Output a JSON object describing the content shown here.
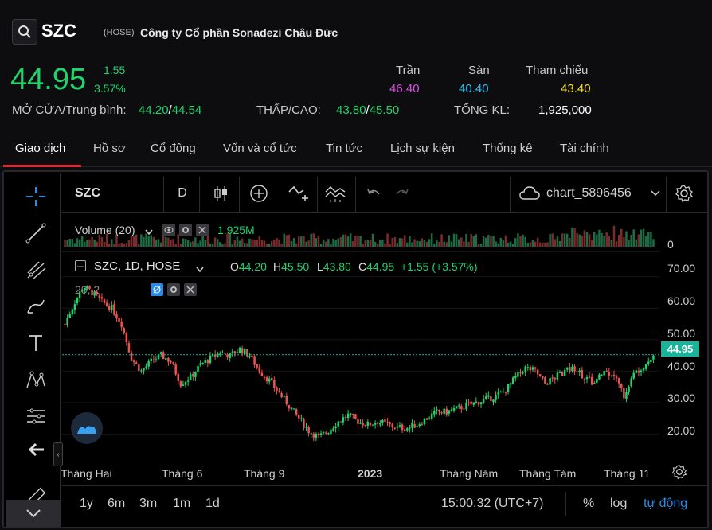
{
  "header": {
    "ticker": "SZC",
    "exchange": "(HOSE)",
    "company": "Công ty Cổ phần Sonadezi Châu Đức",
    "price": "44.95",
    "change": "1.55",
    "change_pct": "3.57%",
    "ceiling_label": "Trần",
    "ceiling": "46.40",
    "floor_label": "Sàn",
    "floor": "40.40",
    "ref_label": "Tham chiếu",
    "ref": "43.40",
    "open_label": "MỞ CỬA/Trung bình:",
    "open": "44.20",
    "open_sep": "/",
    "avg": "44.54",
    "lowhigh_label": "THẤP/CAO:",
    "low": "43.80",
    "lh_sep": "/",
    "high": "45.50",
    "volume_label": "TỔNG KL:",
    "volume": "1,925,000"
  },
  "tabs": [
    "Giao dịch",
    "Hồ sơ",
    "Cổ đông",
    "Vốn và cổ tức",
    "Tin tức",
    "Lịch sự kiện",
    "Thống kê",
    "Tài chính"
  ],
  "toolbar": {
    "symbol": "SZC",
    "interval": "D",
    "layout_name": "chart_5896456"
  },
  "legend": {
    "volume": "Volume (20)",
    "volume_value": "1.925M",
    "series": "SZC, 1D, HOSE",
    "o_label": "O",
    "o": "44.20",
    "h_label": "H",
    "h": "45.50",
    "l_label": "L",
    "l": "43.80",
    "c_label": "C",
    "c": "44.95",
    "change": "+1.55 (+3.57%)",
    "ma": "20, 2"
  },
  "colors": {
    "up": "#21d36b",
    "down": "#ef5350",
    "ceiling": "#d94fe0",
    "floor": "#2bc3f0",
    "ref": "#f5e12d",
    "accent_tab": "#e0252e",
    "price_tag": "#1bb39a",
    "link_blue": "#2a8be6"
  },
  "bottom": {
    "ranges": [
      "1y",
      "6m",
      "3m",
      "1m",
      "1d"
    ],
    "clock": "15:00:32 (UTC+7)",
    "percent": "%",
    "log": "log",
    "auto": "tự động"
  },
  "chart_data": {
    "type": "candlestick",
    "x_ticks": [
      "Tháng Hai",
      "Tháng 6",
      "Tháng 9",
      "2023",
      "Tháng Năm",
      "Tháng Tám",
      "Tháng 11"
    ],
    "y_ticks": [
      "70.00",
      "60.00",
      "50.00",
      "40.00",
      "30.00",
      "20.00"
    ],
    "volume_zero_label": "0",
    "ylim": [
      13,
      75
    ],
    "last_price_label": "44.95",
    "close_path": [
      [
        0,
        55
      ],
      [
        8,
        62
      ],
      [
        15,
        67
      ],
      [
        22,
        65
      ],
      [
        30,
        62
      ],
      [
        38,
        60
      ],
      [
        46,
        55
      ],
      [
        54,
        44
      ],
      [
        62,
        40
      ],
      [
        70,
        43
      ],
      [
        78,
        45
      ],
      [
        86,
        43
      ],
      [
        94,
        36
      ],
      [
        102,
        38
      ],
      [
        110,
        42
      ],
      [
        118,
        44
      ],
      [
        126,
        46
      ],
      [
        134,
        45
      ],
      [
        142,
        47
      ],
      [
        150,
        45
      ],
      [
        158,
        40
      ],
      [
        166,
        37
      ],
      [
        174,
        33
      ],
      [
        182,
        29
      ],
      [
        190,
        25
      ],
      [
        198,
        21
      ],
      [
        206,
        19
      ],
      [
        214,
        21
      ],
      [
        222,
        24
      ],
      [
        230,
        26
      ],
      [
        238,
        24
      ],
      [
        246,
        23
      ],
      [
        254,
        24
      ],
      [
        262,
        23
      ],
      [
        270,
        22
      ],
      [
        278,
        22
      ],
      [
        286,
        23
      ],
      [
        294,
        25
      ],
      [
        302,
        27
      ],
      [
        310,
        27
      ],
      [
        318,
        28
      ],
      [
        326,
        29
      ],
      [
        334,
        30
      ],
      [
        342,
        31
      ],
      [
        350,
        32
      ],
      [
        358,
        34
      ],
      [
        366,
        38
      ],
      [
        374,
        41
      ],
      [
        382,
        40
      ],
      [
        390,
        36
      ],
      [
        398,
        38
      ],
      [
        406,
        40
      ],
      [
        414,
        41
      ],
      [
        422,
        38
      ],
      [
        430,
        36
      ],
      [
        438,
        40
      ],
      [
        446,
        39
      ],
      [
        454,
        32
      ],
      [
        462,
        39
      ],
      [
        470,
        42
      ],
      [
        478,
        44.95
      ]
    ]
  }
}
